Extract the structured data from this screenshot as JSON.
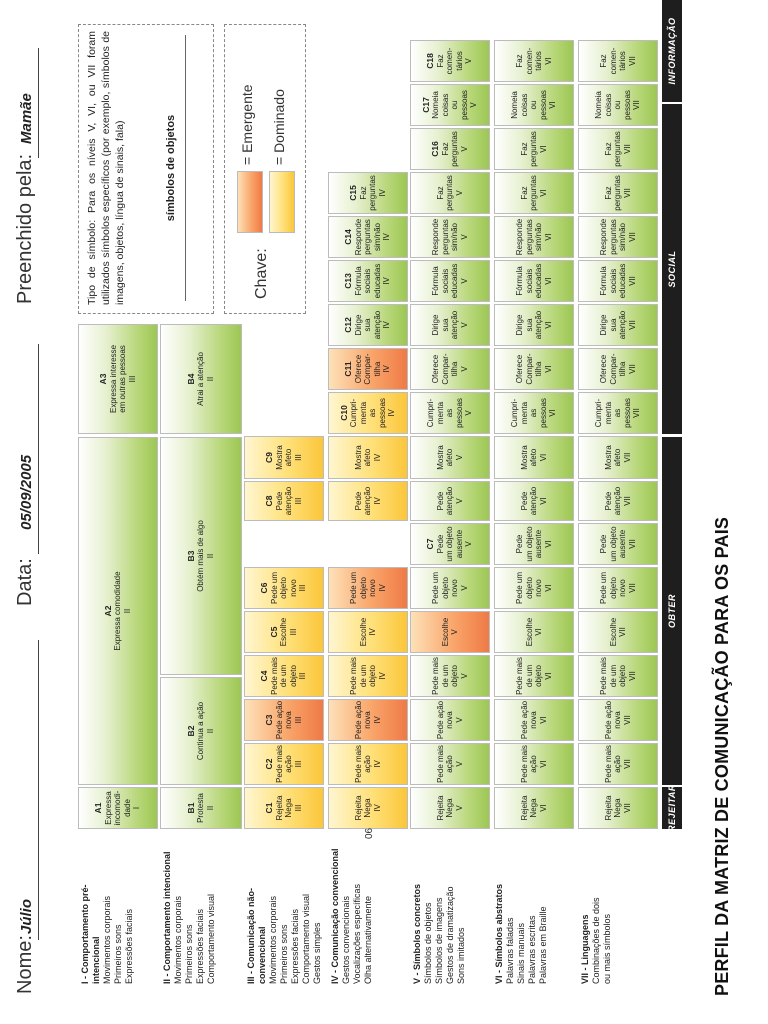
{
  "header": {
    "nome_label": "Nome:",
    "nome_value": "Júlio",
    "data_label": "Data:",
    "data_value": "05/09/2005",
    "preenchido_label": "Preenchido pela:",
    "preenchido_value": "Mamãe"
  },
  "title": "PERFIL DA MATRIZ DE COMUNICAÇÃO PARA OS PAIS",
  "page_number": "06",
  "levels": [
    {
      "title": "I - Comportamento pré-intencional",
      "items": [
        "Movimentos corporais",
        "Primeiros sons",
        "Expressões faciais"
      ]
    },
    {
      "title": "II - Comportamento intencional",
      "items": [
        "Movimentos corporais",
        "Primeiros sons",
        "Expressões faciais",
        "Comportamento visual"
      ]
    },
    {
      "title": "III - Comunicação não-convencional",
      "items": [
        "Movimentos corporais",
        "Primeiros sons",
        "Expressões faciais",
        "Comportamento visual",
        "Gestos simples"
      ]
    },
    {
      "title": "IV - Comunicação convencional",
      "items": [
        "Gestos convencionais",
        "Vocalizações específicas",
        "Olha alternativamente"
      ]
    },
    {
      "title": "V - Símbolos concretos",
      "items": [
        "Símbolos de objetos",
        "Símbolos de imagens",
        "Gestos de dramatização",
        "Sons imitados"
      ]
    },
    {
      "title": "VI - Símbolos abstratos",
      "items": [
        "Palavras faladas",
        "Sinais manuais",
        "Palavras escritas",
        "Palavras em Braille"
      ]
    },
    {
      "title": "VII - Linguagens",
      "items": [
        "Combinações de dois",
        "ou mais símbolos"
      ]
    }
  ],
  "top_cells": {
    "a1": {
      "code": "A1",
      "text": [
        "Expressa",
        "incomodi-",
        "dade"
      ],
      "level": "I"
    },
    "a2": {
      "code": "A2",
      "text": [
        "Expressa comodidade"
      ],
      "level": "II"
    },
    "a3": {
      "code": "A3",
      "text": [
        "Expressa interesse",
        "em outras pessoas"
      ],
      "level": "III"
    },
    "b1": {
      "code": "B1",
      "text": [
        "Protesta"
      ],
      "level": "II"
    },
    "b2": {
      "code": "B2",
      "text": [
        "Continua a ação"
      ],
      "level": "II"
    },
    "b3": {
      "code": "B3",
      "text": [
        "Obtém mais de algo"
      ],
      "level": "II"
    },
    "b4": {
      "code": "B4",
      "text": [
        "Atrai a atenção"
      ],
      "level": "II"
    }
  },
  "columns": [
    {
      "code": "C1",
      "label": [
        "Rejeita",
        "Nega"
      ]
    },
    {
      "code": "C2",
      "label": [
        "Pede mais",
        "ação"
      ]
    },
    {
      "code": "C3",
      "label": [
        "Pede ação",
        "nova"
      ]
    },
    {
      "code": "C4",
      "label": [
        "Pede mais",
        "de um",
        "objeto"
      ]
    },
    {
      "code": "C5",
      "label": [
        "Escolhe"
      ]
    },
    {
      "code": "C6",
      "label": [
        "Pede um",
        "objeto",
        "novo"
      ]
    },
    {
      "code": "C7",
      "label": [
        "Pede",
        "um objeto",
        "ausente"
      ]
    },
    {
      "code": "C8",
      "label": [
        "Pede",
        "atenção"
      ]
    },
    {
      "code": "C9",
      "label": [
        "Mostra",
        "afeto"
      ]
    },
    {
      "code": "C10",
      "label": [
        "Cumpri-",
        "menta",
        "as pessoas"
      ]
    },
    {
      "code": "C11",
      "label": [
        "Oferece",
        "Compar-",
        "tilha"
      ]
    },
    {
      "code": "C12",
      "label": [
        "Dirige",
        "sua",
        "atenção"
      ]
    },
    {
      "code": "C13",
      "label": [
        "Fórmula",
        "sociais",
        "educadas"
      ]
    },
    {
      "code": "C14",
      "label": [
        "Responde",
        "perguntas",
        "sim/não"
      ]
    },
    {
      "code": "C15",
      "label": [
        "Faz",
        "perguntas"
      ]
    },
    {
      "code": "C16",
      "label": [
        "Faz",
        "perguntas"
      ]
    },
    {
      "code": "C17",
      "label": [
        "Nomeia",
        "coisas",
        "ou pessoas"
      ]
    },
    {
      "code": "C18",
      "label": [
        "Faz",
        "comen-",
        "tários"
      ]
    }
  ],
  "row_levels": [
    "III",
    "IV",
    "V",
    "VI",
    "VII"
  ],
  "bars": {
    "rejeitar": "REJEITAR",
    "obter": "OBTER",
    "social": "SOCIAL",
    "informacao": "INFORMAÇÃO"
  },
  "symbol_type_note": "Tipo de símbolo: Para os níveis V, VI, ou VII foram utilizados símbolos específicos (por exemplo, símbolos de imagens, objetos, língua de sinais, fala)",
  "symbol_type_value": "símbolos de objetos",
  "key": {
    "label": "Chave:",
    "emergente": "= Emergente",
    "dominado": "= Dominado",
    "emergente_color": "#f58a4f",
    "dominado_color": "#fbd14a"
  }
}
